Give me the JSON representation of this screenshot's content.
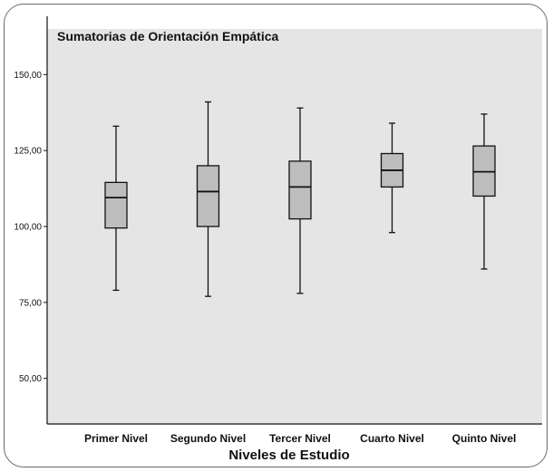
{
  "chart_data": {
    "type": "boxplot",
    "title": "Sumatorias de Orientación Empática",
    "xlabel": "Niveles de Estudio",
    "ylabel": "",
    "ylim": [
      35,
      165
    ],
    "yticks": [
      50,
      75,
      100,
      125,
      150
    ],
    "ytick_labels": [
      "50,00",
      "75,00",
      "100,00",
      "125,00",
      "150,00"
    ],
    "grid": false,
    "categories": [
      "Primer Nivel",
      "Segundo Nivel",
      "Tercer Nivel",
      "Cuarto Nivel",
      "Quinto Nivel"
    ],
    "boxes": [
      {
        "min": 79,
        "q1": 99.5,
        "median": 109.5,
        "q3": 114.5,
        "max": 133
      },
      {
        "min": 77,
        "q1": 100,
        "median": 111.5,
        "q3": 120,
        "max": 141
      },
      {
        "min": 78,
        "q1": 102.5,
        "median": 113,
        "q3": 121.5,
        "max": 139
      },
      {
        "min": 98,
        "q1": 113,
        "median": 118.5,
        "q3": 124,
        "max": 134
      },
      {
        "min": 86,
        "q1": 110,
        "median": 118,
        "q3": 126.5,
        "max": 137
      }
    ],
    "colors": {
      "plot_background": "#e5e5e5",
      "box_fill": "#bdbdbd",
      "stroke": "#111111"
    }
  }
}
